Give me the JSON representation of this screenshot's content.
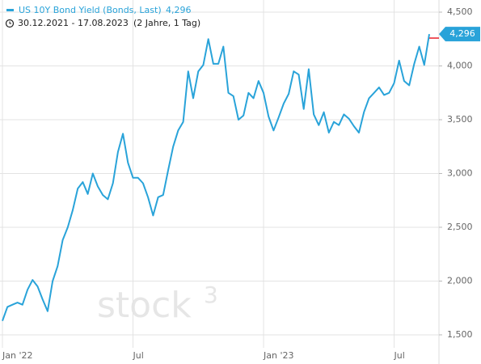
{
  "chart_data": {
    "type": "line",
    "title": "US 10Y Bond Yield (Bonds, Last)",
    "date_range": "30.12.2021 - 17.08.2023",
    "period": "(2 Jahre, 1 Tag)",
    "watermark": {
      "text": "stock",
      "sup": "3"
    },
    "categories": [
      "Jan '22",
      null,
      null,
      null,
      null,
      null,
      null,
      null,
      null,
      null,
      null,
      null,
      null,
      null,
      null,
      null,
      null,
      null,
      null,
      null,
      null,
      null,
      null,
      null,
      null,
      null,
      "Jul",
      null,
      null,
      null,
      null,
      null,
      null,
      null,
      null,
      null,
      null,
      null,
      null,
      null,
      null,
      null,
      null,
      null,
      null,
      null,
      null,
      null,
      null,
      null,
      null,
      null,
      "Jan '23",
      null,
      null,
      null,
      null,
      null,
      null,
      null,
      null,
      null,
      null,
      null,
      null,
      null,
      null,
      null,
      null,
      null,
      null,
      null,
      null,
      null,
      null,
      null,
      null,
      null,
      "Jul",
      null,
      null,
      null,
      null,
      null,
      null,
      null
    ],
    "series": [
      {
        "name": "US 10Y Bond Yield",
        "color": "#29a3d9",
        "values": [
          1630,
          1760,
          1780,
          1800,
          1780,
          1920,
          2010,
          1950,
          1830,
          1720,
          2000,
          2140,
          2380,
          2500,
          2660,
          2860,
          2920,
          2810,
          3000,
          2880,
          2800,
          2760,
          2910,
          3200,
          3370,
          3100,
          2960,
          2960,
          2910,
          2780,
          2610,
          2780,
          2800,
          3030,
          3250,
          3400,
          3480,
          3950,
          3700,
          3950,
          4010,
          4250,
          4020,
          4020,
          4180,
          3750,
          3720,
          3500,
          3540,
          3750,
          3700,
          3860,
          3750,
          3530,
          3400,
          3520,
          3650,
          3740,
          3950,
          3920,
          3600,
          3970,
          3550,
          3450,
          3570,
          3380,
          3480,
          3450,
          3550,
          3510,
          3440,
          3380,
          3570,
          3700,
          3750,
          3800,
          3730,
          3750,
          3840,
          4050,
          3860,
          3820,
          4020,
          4180,
          4010,
          4296
        ],
        "value_labels": [
          null,
          null,
          null,
          null,
          null,
          null,
          null,
          null,
          null,
          null,
          null,
          null,
          null,
          null,
          null,
          null,
          null,
          null,
          null,
          null,
          null,
          null,
          null,
          null,
          null,
          null,
          null,
          null,
          null,
          null,
          null,
          null,
          null,
          null,
          null,
          null,
          null,
          null,
          null,
          null,
          null,
          null,
          null,
          null,
          null,
          null,
          null,
          null,
          null,
          null,
          null,
          null,
          null,
          null,
          null,
          null,
          null,
          null,
          null,
          null,
          null,
          null,
          null,
          null,
          null,
          null,
          null,
          null,
          null,
          null,
          null,
          null,
          null,
          null,
          null,
          null,
          null,
          null,
          null,
          null,
          null,
          null,
          null,
          null,
          null,
          "4,296"
        ]
      }
    ],
    "reference_line": {
      "value": 4259,
      "color": "#e8202a"
    },
    "ylim": [
      1417,
      4613
    ],
    "yticks": [
      {
        "value": 1500,
        "label": "1,500"
      },
      {
        "value": 2000,
        "label": "2,000"
      },
      {
        "value": 2500,
        "label": "2,500"
      },
      {
        "value": 3000,
        "label": "3,000"
      },
      {
        "value": 3500,
        "label": "3,500"
      },
      {
        "value": 4000,
        "label": "4,000"
      },
      {
        "value": 4500,
        "label": "4,500"
      }
    ],
    "grid": true
  }
}
